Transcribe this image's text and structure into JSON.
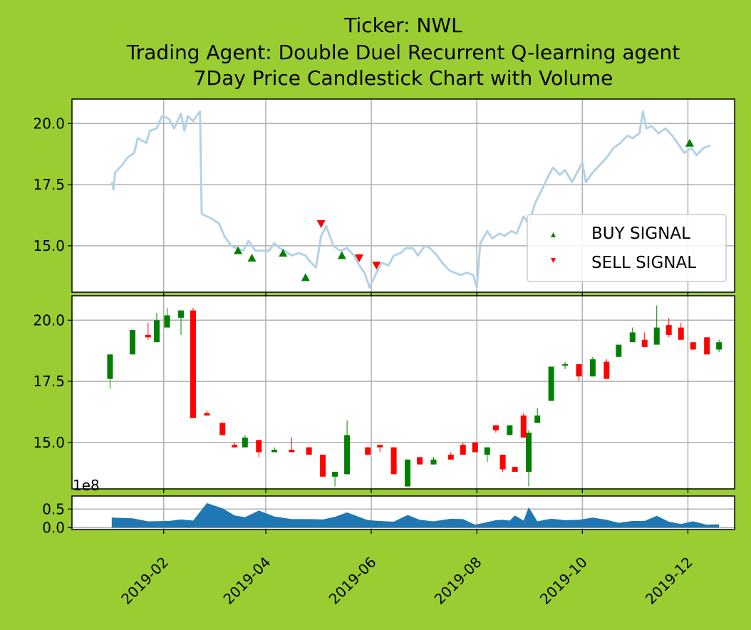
{
  "title": {
    "line1": "Ticker: NWL",
    "line2": "Trading Agent: Double Duel Recurrent Q-learning agent",
    "line3": "7Day Price Candlestick Chart with Volume"
  },
  "colors": {
    "background": "#9acd32",
    "price_line": "#b3d2e6",
    "up": "#008000",
    "down": "#ff0000",
    "volume": "#1f77b4",
    "grid": "#b0b0b0",
    "buy_marker": "#008000",
    "sell_marker": "#ff0000"
  },
  "chart_data": {
    "type": "candlestick",
    "x_range": [
      "2018-12-10",
      "2019-12-28"
    ],
    "x_ticks": [
      "2019-02-01",
      "2019-04-01",
      "2019-06-01",
      "2019-08-01",
      "2019-10-01",
      "2019-12-01"
    ],
    "x_tick_labels": [
      "2019-02",
      "2019-04",
      "2019-06",
      "2019-08",
      "2019-10",
      "2019-12"
    ],
    "price_ylim": [
      13.1,
      21.0
    ],
    "price_yticks": [
      15.0,
      17.5,
      20.0
    ],
    "price_yticklabels": [
      "15.0",
      "17.5",
      "20.0"
    ],
    "volume_offset_label": "1e8",
    "volume_ylim": [
      -0.05,
      0.85
    ],
    "volume_yticks": [
      0.0,
      0.5
    ],
    "volume_yticklabels": [
      "0.0",
      "0.5"
    ],
    "grid": true,
    "legend": {
      "placement": "lower-right",
      "entries": [
        {
          "label": "BUY SIGNAL",
          "marker": "triangle-up"
        },
        {
          "label": "SELL SIGNAL",
          "marker": "triangle-down"
        }
      ]
    },
    "price_line": [
      [
        "2019-01-02",
        17.6
      ],
      [
        "2019-01-03",
        17.3
      ],
      [
        "2019-01-04",
        18.0
      ],
      [
        "2019-01-08",
        18.3
      ],
      [
        "2019-01-11",
        18.6
      ],
      [
        "2019-01-15",
        18.8
      ],
      [
        "2019-01-17",
        19.4
      ],
      [
        "2019-01-22",
        19.2
      ],
      [
        "2019-01-24",
        19.7
      ],
      [
        "2019-01-28",
        19.8
      ],
      [
        "2019-01-31",
        20.3
      ],
      [
        "2019-02-04",
        20.2
      ],
      [
        "2019-02-07",
        19.8
      ],
      [
        "2019-02-11",
        20.4
      ],
      [
        "2019-02-13",
        19.7
      ],
      [
        "2019-02-15",
        20.3
      ],
      [
        "2019-02-18",
        20.1
      ],
      [
        "2019-02-22",
        20.5
      ],
      [
        "2019-02-23",
        16.3
      ],
      [
        "2019-02-26",
        16.2
      ],
      [
        "2019-03-01",
        16.1
      ],
      [
        "2019-03-05",
        15.9
      ],
      [
        "2019-03-08",
        15.4
      ],
      [
        "2019-03-12",
        15.0
      ],
      [
        "2019-03-15",
        14.9
      ],
      [
        "2019-03-19",
        14.8
      ],
      [
        "2019-03-22",
        15.2
      ],
      [
        "2019-03-26",
        14.8
      ],
      [
        "2019-03-29",
        14.8
      ],
      [
        "2019-04-03",
        14.8
      ],
      [
        "2019-04-06",
        15.1
      ],
      [
        "2019-04-09",
        14.9
      ],
      [
        "2019-04-12",
        14.8
      ],
      [
        "2019-04-16",
        14.6
      ],
      [
        "2019-04-20",
        14.7
      ],
      [
        "2019-04-24",
        14.6
      ],
      [
        "2019-04-26",
        14.4
      ],
      [
        "2019-04-30",
        14.1
      ],
      [
        "2019-05-03",
        15.4
      ],
      [
        "2019-05-06",
        15.8
      ],
      [
        "2019-05-10",
        15.0
      ],
      [
        "2019-05-14",
        14.8
      ],
      [
        "2019-05-18",
        14.9
      ],
      [
        "2019-05-22",
        14.6
      ],
      [
        "2019-05-25",
        14.2
      ],
      [
        "2019-05-28",
        13.9
      ],
      [
        "2019-05-31",
        13.3
      ],
      [
        "2019-06-04",
        13.9
      ],
      [
        "2019-06-07",
        14.3
      ],
      [
        "2019-06-11",
        14.2
      ],
      [
        "2019-06-14",
        14.6
      ],
      [
        "2019-06-18",
        14.7
      ],
      [
        "2019-06-21",
        14.9
      ],
      [
        "2019-06-25",
        14.9
      ],
      [
        "2019-06-28",
        14.6
      ],
      [
        "2019-07-02",
        15.0
      ],
      [
        "2019-07-05",
        14.9
      ],
      [
        "2019-07-09",
        14.6
      ],
      [
        "2019-07-12",
        14.3
      ],
      [
        "2019-07-16",
        14.0
      ],
      [
        "2019-07-19",
        13.9
      ],
      [
        "2019-07-23",
        13.8
      ],
      [
        "2019-07-26",
        13.9
      ],
      [
        "2019-07-30",
        13.8
      ],
      [
        "2019-08-01",
        13.3
      ],
      [
        "2019-08-03",
        15.1
      ],
      [
        "2019-08-07",
        15.6
      ],
      [
        "2019-08-10",
        15.3
      ],
      [
        "2019-08-14",
        15.5
      ],
      [
        "2019-08-17",
        15.4
      ],
      [
        "2019-08-21",
        15.6
      ],
      [
        "2019-08-24",
        15.5
      ],
      [
        "2019-08-28",
        16.2
      ],
      [
        "2019-08-31",
        15.9
      ],
      [
        "2019-09-04",
        16.8
      ],
      [
        "2019-09-07",
        17.2
      ],
      [
        "2019-09-11",
        17.8
      ],
      [
        "2019-09-14",
        18.2
      ],
      [
        "2019-09-18",
        17.9
      ],
      [
        "2019-09-21",
        18.1
      ],
      [
        "2019-09-25",
        17.6
      ],
      [
        "2019-09-28",
        18.0
      ],
      [
        "2019-10-01",
        18.4
      ],
      [
        "2019-10-03",
        17.6
      ],
      [
        "2019-10-07",
        18.0
      ],
      [
        "2019-10-11",
        18.3
      ],
      [
        "2019-10-15",
        18.6
      ],
      [
        "2019-10-19",
        19.0
      ],
      [
        "2019-10-23",
        19.2
      ],
      [
        "2019-10-27",
        19.5
      ],
      [
        "2019-10-30",
        19.4
      ],
      [
        "2019-11-03",
        19.6
      ],
      [
        "2019-11-05",
        20.5
      ],
      [
        "2019-11-07",
        19.8
      ],
      [
        "2019-11-10",
        19.9
      ],
      [
        "2019-11-14",
        19.6
      ],
      [
        "2019-11-18",
        19.8
      ],
      [
        "2019-11-22",
        19.5
      ],
      [
        "2019-11-26",
        19.1
      ],
      [
        "2019-11-29",
        18.8
      ],
      [
        "2019-12-03",
        19.0
      ],
      [
        "2019-12-06",
        18.7
      ],
      [
        "2019-12-10",
        19.0
      ],
      [
        "2019-12-14",
        19.1
      ]
    ],
    "buy_signals": [
      [
        "2019-03-16",
        14.8
      ],
      [
        "2019-03-24",
        14.5
      ],
      [
        "2019-04-11",
        14.7
      ],
      [
        "2019-04-24",
        13.7
      ],
      [
        "2019-05-15",
        14.6
      ],
      [
        "2019-12-02",
        19.2
      ]
    ],
    "sell_signals": [
      [
        "2019-05-03",
        15.9
      ],
      [
        "2019-05-25",
        14.5
      ],
      [
        "2019-06-04",
        14.2
      ]
    ],
    "candles": [
      [
        "2019-01-01",
        17.6,
        18.6,
        17.2,
        18.6
      ],
      [
        "2019-01-14",
        18.6,
        19.6,
        18.6,
        19.6
      ],
      [
        "2019-01-23",
        19.4,
        19.3,
        19.2,
        19.9
      ],
      [
        "2019-01-28",
        19.1,
        20.0,
        19.1,
        20.3
      ],
      [
        "2019-02-03",
        19.7,
        20.2,
        19.7,
        20.5
      ],
      [
        "2019-02-11",
        20.1,
        20.4,
        19.4,
        20.4
      ],
      [
        "2019-02-18",
        20.4,
        16.0,
        16.0,
        20.5
      ],
      [
        "2019-02-26",
        16.2,
        16.1,
        16.1,
        16.3
      ],
      [
        "2019-03-07",
        15.8,
        15.3,
        15.3,
        15.8
      ],
      [
        "2019-03-14",
        14.9,
        14.8,
        14.8,
        15.0
      ],
      [
        "2019-03-20",
        14.8,
        15.2,
        14.8,
        15.3
      ],
      [
        "2019-03-28",
        15.1,
        14.6,
        14.4,
        15.1
      ],
      [
        "2019-04-06",
        14.6,
        14.7,
        14.6,
        14.8
      ],
      [
        "2019-04-16",
        14.7,
        14.6,
        14.6,
        15.2
      ],
      [
        "2019-04-26",
        14.8,
        14.5,
        14.5,
        14.8
      ],
      [
        "2019-05-04",
        14.5,
        13.6,
        13.6,
        14.5
      ],
      [
        "2019-05-11",
        13.6,
        13.8,
        13.2,
        13.8
      ],
      [
        "2019-05-18",
        13.7,
        15.3,
        13.7,
        15.9
      ],
      [
        "2019-05-30",
        14.8,
        14.5,
        14.5,
        14.8
      ],
      [
        "2019-06-06",
        14.9,
        14.8,
        14.6,
        14.9
      ],
      [
        "2019-06-14",
        14.8,
        13.7,
        13.7,
        14.8
      ],
      [
        "2019-06-22",
        13.2,
        14.3,
        13.2,
        14.3
      ],
      [
        "2019-06-29",
        14.4,
        14.1,
        14.1,
        14.4
      ],
      [
        "2019-07-07",
        14.1,
        14.3,
        14.1,
        14.4
      ],
      [
        "2019-07-17",
        14.5,
        14.3,
        14.3,
        14.6
      ],
      [
        "2019-07-24",
        14.9,
        14.5,
        14.5,
        15.0
      ],
      [
        "2019-07-31",
        15.0,
        14.6,
        14.6,
        15.0
      ],
      [
        "2019-08-07",
        14.5,
        14.8,
        14.2,
        14.8
      ],
      [
        "2019-08-16",
        14.5,
        13.9,
        13.8,
        14.5
      ],
      [
        "2019-08-23",
        14.0,
        13.8,
        13.8,
        14.0
      ],
      [
        "2019-08-31",
        13.8,
        15.4,
        13.2,
        15.5
      ],
      [
        "2019-08-12",
        15.7,
        15.5,
        15.4,
        15.7
      ],
      [
        "2019-08-20",
        15.3,
        15.7,
        15.3,
        15.7
      ],
      [
        "2019-08-28",
        16.1,
        15.2,
        15.2,
        16.2
      ],
      [
        "2019-09-05",
        15.8,
        16.1,
        15.8,
        16.4
      ],
      [
        "2019-09-13",
        16.7,
        18.1,
        16.7,
        18.1
      ],
      [
        "2019-09-21",
        18.2,
        18.2,
        18.0,
        18.3
      ],
      [
        "2019-09-29",
        18.2,
        17.7,
        17.5,
        18.2
      ],
      [
        "2019-10-07",
        17.7,
        18.4,
        17.7,
        18.5
      ],
      [
        "2019-10-15",
        18.3,
        17.6,
        17.6,
        18.4
      ],
      [
        "2019-10-22",
        18.5,
        19.0,
        18.5,
        19.0
      ],
      [
        "2019-10-30",
        19.1,
        19.5,
        19.1,
        19.7
      ],
      [
        "2019-11-06",
        19.2,
        18.9,
        18.9,
        19.5
      ],
      [
        "2019-11-13",
        19.0,
        19.7,
        19.0,
        20.6
      ],
      [
        "2019-11-20",
        19.8,
        19.4,
        19.3,
        20.1
      ],
      [
        "2019-11-27",
        19.7,
        19.2,
        19.2,
        19.9
      ],
      [
        "2019-12-04",
        19.1,
        18.8,
        18.8,
        19.1
      ],
      [
        "2019-12-12",
        19.3,
        18.6,
        18.6,
        19.3
      ],
      [
        "2019-12-19",
        18.8,
        19.1,
        18.7,
        19.2
      ]
    ],
    "volume": [
      [
        "2019-01-02",
        0.27
      ],
      [
        "2019-01-14",
        0.25
      ],
      [
        "2019-01-23",
        0.17
      ],
      [
        "2019-02-04",
        0.18
      ],
      [
        "2019-02-11",
        0.22
      ],
      [
        "2019-02-18",
        0.19
      ],
      [
        "2019-02-26",
        0.66
      ],
      [
        "2019-03-07",
        0.52
      ],
      [
        "2019-03-14",
        0.33
      ],
      [
        "2019-03-20",
        0.28
      ],
      [
        "2019-03-28",
        0.46
      ],
      [
        "2019-04-06",
        0.3
      ],
      [
        "2019-04-16",
        0.23
      ],
      [
        "2019-04-26",
        0.23
      ],
      [
        "2019-05-04",
        0.22
      ],
      [
        "2019-05-11",
        0.29
      ],
      [
        "2019-05-18",
        0.41
      ],
      [
        "2019-05-30",
        0.2
      ],
      [
        "2019-06-06",
        0.18
      ],
      [
        "2019-06-14",
        0.16
      ],
      [
        "2019-06-22",
        0.34
      ],
      [
        "2019-06-29",
        0.21
      ],
      [
        "2019-07-07",
        0.17
      ],
      [
        "2019-07-17",
        0.24
      ],
      [
        "2019-07-24",
        0.23
      ],
      [
        "2019-07-31",
        0.08
      ],
      [
        "2019-08-07",
        0.15
      ],
      [
        "2019-08-16",
        0.21
      ],
      [
        "2019-08-23",
        0.33
      ],
      [
        "2019-08-31",
        0.55
      ],
      [
        "2019-08-12",
        0.2
      ],
      [
        "2019-08-20",
        0.19
      ],
      [
        "2019-08-28",
        0.19
      ],
      [
        "2019-09-05",
        0.17
      ],
      [
        "2019-09-13",
        0.24
      ],
      [
        "2019-09-21",
        0.2
      ],
      [
        "2019-09-29",
        0.21
      ],
      [
        "2019-10-07",
        0.27
      ],
      [
        "2019-10-15",
        0.21
      ],
      [
        "2019-10-22",
        0.13
      ],
      [
        "2019-10-30",
        0.18
      ],
      [
        "2019-11-06",
        0.18
      ],
      [
        "2019-11-13",
        0.32
      ],
      [
        "2019-11-20",
        0.16
      ],
      [
        "2019-11-27",
        0.1
      ],
      [
        "2019-12-04",
        0.17
      ],
      [
        "2019-12-12",
        0.08
      ],
      [
        "2019-12-19",
        0.09
      ]
    ]
  }
}
